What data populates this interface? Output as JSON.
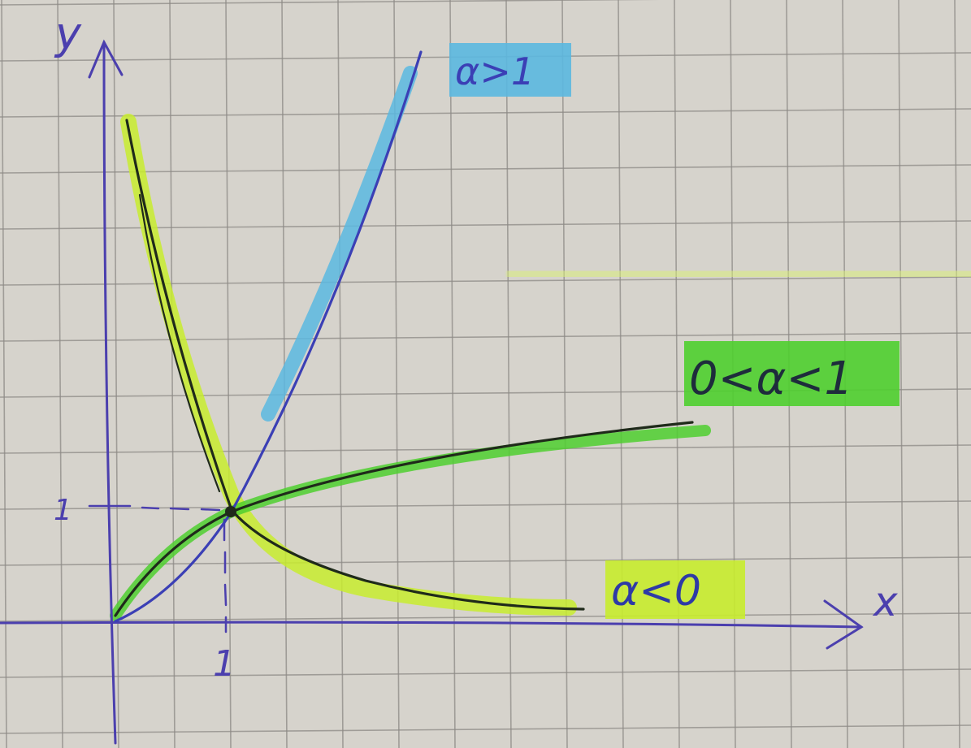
{
  "axes": {
    "x_label": "x",
    "y_label": "y",
    "x_tick": "1",
    "y_tick": "1"
  },
  "curves": [
    {
      "id": "alpha-gt-1",
      "label": "α>1",
      "highlight": "#5bb8e0",
      "ink": "#3b3fb5"
    },
    {
      "id": "alpha-0-1",
      "label": "0<α<1",
      "highlight": "#4fcf2f",
      "ink": "#1f2a1a"
    },
    {
      "id": "alpha-lt-0",
      "label": "α<0",
      "highlight": "#c8ec2e",
      "ink": "#1f2a1a"
    }
  ],
  "colors": {
    "paper": "#d6d3cc",
    "grid": "#8d8a86",
    "axis_ink": "#4b3fae"
  }
}
